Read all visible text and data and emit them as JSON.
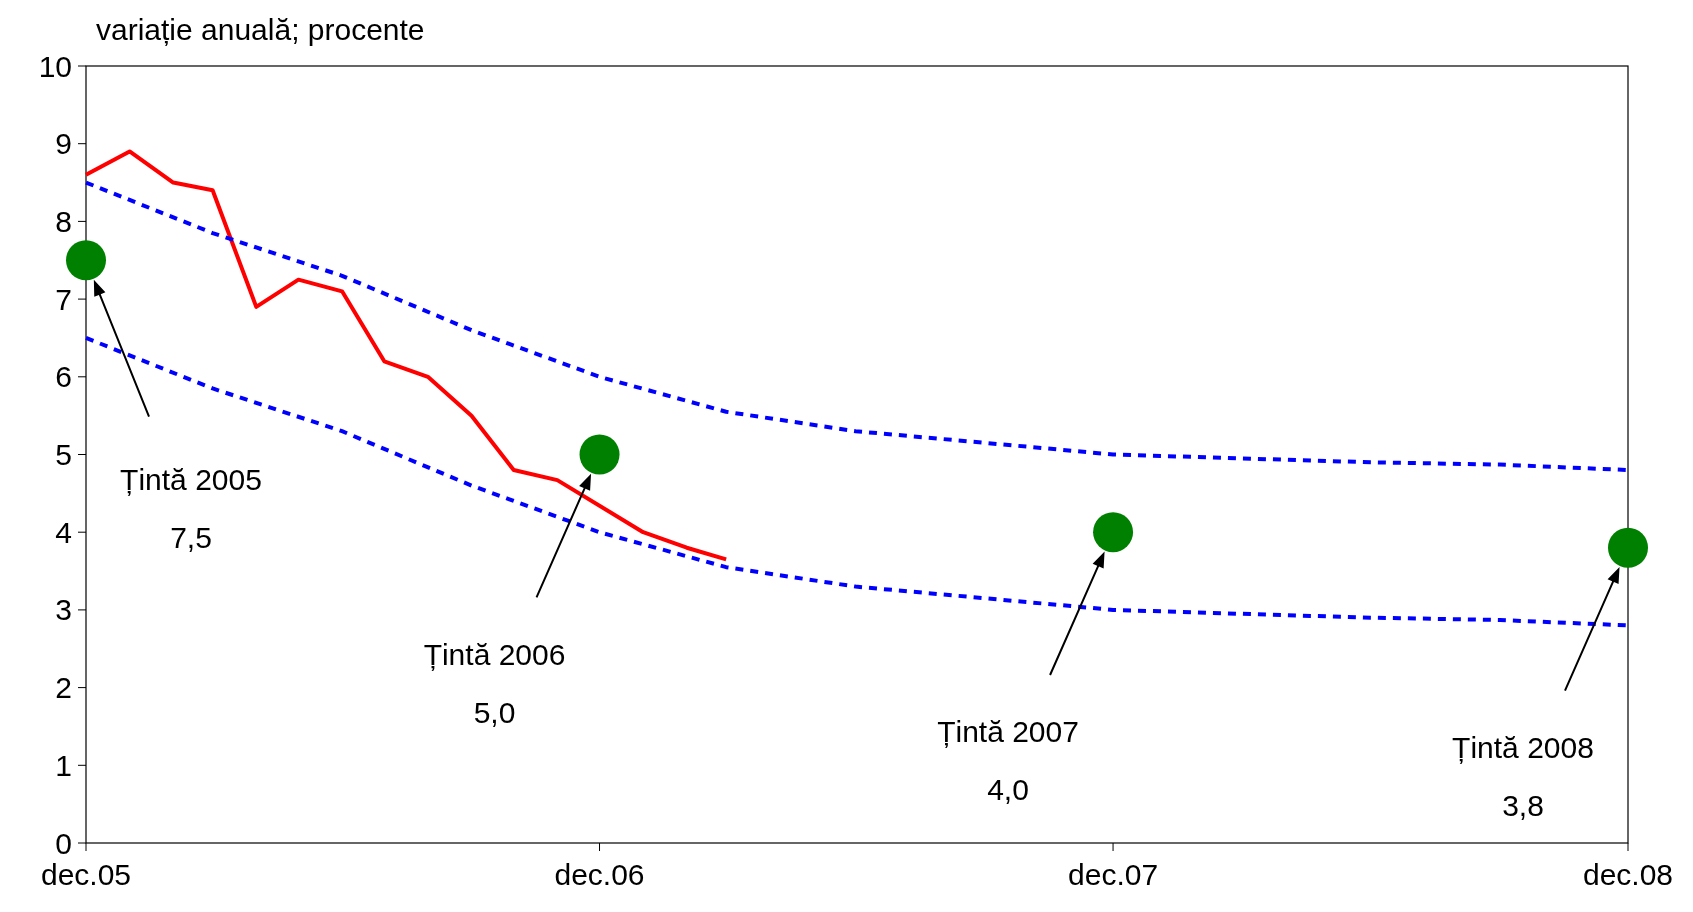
{
  "chart_data": {
    "type": "line",
    "ylabel": "variație anuală; procente",
    "xlim": [
      "2005-12",
      "2008-12"
    ],
    "xticks": [
      {
        "value": "2005-12",
        "label": "dec.05"
      },
      {
        "value": "2006-12",
        "label": "dec.06"
      },
      {
        "value": "2007-12",
        "label": "dec.07"
      },
      {
        "value": "2008-12",
        "label": "dec.08"
      }
    ],
    "ylim": [
      0,
      10
    ],
    "yticks": [
      0,
      1,
      2,
      3,
      4,
      5,
      6,
      7,
      8,
      9,
      10
    ],
    "grid": false,
    "series": [
      {
        "color": "#ff0000",
        "line_style": "solid",
        "x": [
          "2005-12",
          "2006-01",
          "2006-02",
          "2006-03",
          "2006-04",
          "2006-05",
          "2006-06",
          "2006-07",
          "2006-08",
          "2006-09",
          "2006-10",
          "2006-11",
          "2007-01",
          "2007-02",
          "2007-03"
        ],
        "values": [
          8.6,
          8.9,
          8.5,
          8.4,
          6.9,
          7.25,
          7.1,
          6.2,
          6.0,
          5.5,
          4.8,
          4.67,
          4.0,
          3.8,
          3.65
        ]
      },
      {
        "color": "#0000ff",
        "line_style": "dotted",
        "x": [
          "2005-12",
          "2006-03",
          "2006-06",
          "2006-09",
          "2006-12",
          "2007-03",
          "2007-06",
          "2007-09",
          "2007-12",
          "2008-03",
          "2008-06",
          "2008-09",
          "2008-12"
        ],
        "values": [
          8.5,
          7.85,
          7.3,
          6.6,
          6.0,
          5.55,
          5.3,
          5.15,
          5.0,
          4.95,
          4.9,
          4.87,
          4.8
        ]
      },
      {
        "color": "#0000ff",
        "line_style": "dotted",
        "x": [
          "2005-12",
          "2006-03",
          "2006-06",
          "2006-09",
          "2006-12",
          "2007-03",
          "2007-06",
          "2007-09",
          "2007-12",
          "2008-03",
          "2008-06",
          "2008-09",
          "2008-12"
        ],
        "values": [
          6.5,
          5.85,
          5.3,
          4.6,
          4.0,
          3.55,
          3.3,
          3.15,
          3.0,
          2.95,
          2.9,
          2.87,
          2.8
        ]
      },
      {
        "type": "scatter",
        "color": "#008000",
        "marker": "circle",
        "x": [
          "2005-12",
          "2006-12",
          "2007-12",
          "2008-12"
        ],
        "values": [
          7.5,
          5.0,
          4.0,
          3.8
        ]
      }
    ],
    "annotations": [
      "Țintă 2005\n7,5",
      "Țintă 2006\n5,0",
      "Țintă 2007\n4,0",
      "Țintă 2008\n3,8"
    ]
  }
}
